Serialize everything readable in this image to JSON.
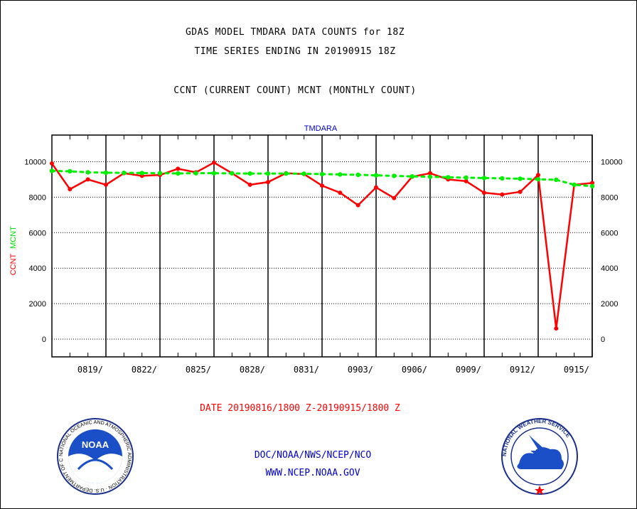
{
  "header": {
    "title_line1": "GDAS MODEL TMDARA DATA COUNTS for 18Z",
    "title_line2": "TIME SERIES ENDING IN 20190915 18Z",
    "subtitle": "CCNT (CURRENT COUNT) MCNT (MONTHLY COUNT)"
  },
  "chart_data": {
    "type": "line",
    "title": "TMDARA",
    "ylabel_ccnt": "CCNT",
    "ylabel_mcnt": "MCNT",
    "xlabel": "DATE 20190816/1800 Z-20190915/1800 Z",
    "ylim": [
      -1000,
      11500
    ],
    "yticks": [
      0,
      2000,
      4000,
      6000,
      8000,
      10000
    ],
    "xlim": [
      0,
      30
    ],
    "xtick_labels": [
      "0819/",
      "0822/",
      "0825/",
      "0828/",
      "0831/",
      "0903/",
      "0906/",
      "0909/",
      "0912/",
      "0915/"
    ],
    "xtick_positions": [
      3,
      6,
      9,
      12,
      15,
      18,
      21,
      24,
      27,
      30
    ],
    "grid": true,
    "series": [
      {
        "name": "CCNT",
        "color": "#ff0000",
        "x": [
          0,
          1,
          2,
          3,
          4,
          5,
          6,
          7,
          8,
          9,
          10,
          11,
          12,
          13,
          14,
          15,
          16,
          17,
          18,
          19,
          20,
          21,
          22,
          23,
          24,
          25,
          26,
          27,
          28,
          29,
          30
        ],
        "values": [
          9900,
          8450,
          9000,
          8700,
          9350,
          9200,
          9250,
          9600,
          9400,
          9950,
          9350,
          8700,
          8850,
          9350,
          9300,
          8650,
          8250,
          7550,
          8550,
          7950,
          9150,
          9350,
          9000,
          8900,
          8250,
          8150,
          8300,
          9250,
          600,
          8700,
          8800
        ]
      },
      {
        "name": "MCNT",
        "color": "#00ee00",
        "x": [
          0,
          1,
          2,
          3,
          4,
          5,
          6,
          7,
          8,
          9,
          10,
          11,
          12,
          13,
          14,
          15,
          16,
          17,
          18,
          19,
          20,
          21,
          22,
          23,
          24,
          25,
          26,
          27,
          28,
          29,
          30
        ],
        "values": [
          9480,
          9460,
          9400,
          9380,
          9370,
          9360,
          9350,
          9340,
          9350,
          9350,
          9340,
          9330,
          9330,
          9330,
          9320,
          9300,
          9280,
          9260,
          9230,
          9200,
          9170,
          9150,
          9120,
          9100,
          9080,
          9060,
          9040,
          9010,
          8980,
          8700,
          8620
        ]
      }
    ]
  },
  "footer": {
    "line1": "DOC/NOAA/NWS/NCEP/NCO",
    "line2": "WWW.NCEP.NOAA.GOV",
    "noaa_logo_text": "NOAA",
    "noaa_ring_text": "NATIONAL OCEANIC AND ATMOSPHERIC ADMINISTRATION · U.S. DEPARTMENT OF COMMERCE",
    "nws_ring_text": "NATIONAL WEATHER SERVICE"
  },
  "colors": {
    "ccnt": "#ff0000",
    "mcnt": "#00ee00",
    "title_blue": "#0000cc",
    "axis": "#000000"
  }
}
